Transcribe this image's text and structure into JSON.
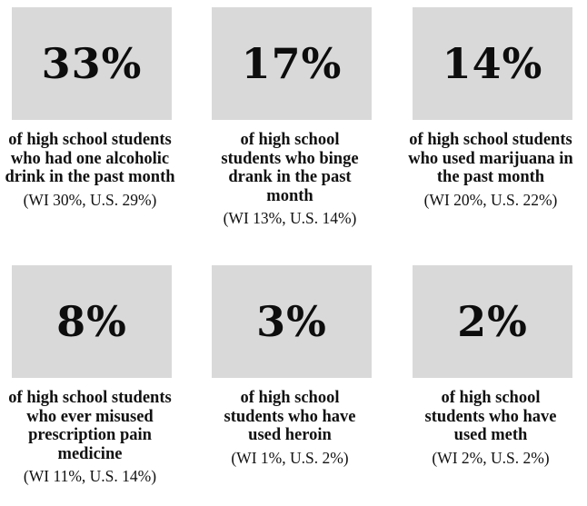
{
  "cards": [
    {
      "percent": "33%",
      "description": "of high school students who had one alcoholic drink in the past month",
      "comparison": "(WI 30%, U.S. 29%)"
    },
    {
      "percent": "17%",
      "description": "of high school students who binge drank in the past month",
      "comparison": "(WI 13%, U.S. 14%)"
    },
    {
      "percent": "14%",
      "description": "of high school students who used marijuana in the past month",
      "comparison": "(WI 20%, U.S. 22%)"
    },
    {
      "percent": "8%",
      "description": "of high school students who ever misused prescription pain medicine",
      "comparison": "(WI 11%, U.S. 14%)"
    },
    {
      "percent": "3%",
      "description": "of high school students who have used heroin",
      "comparison": "(WI 1%, U.S. 2%)"
    },
    {
      "percent": "2%",
      "description": "of high school students who have used meth",
      "comparison": "(WI 2%, U.S. 2%)"
    }
  ],
  "colors": {
    "box_background": "#d9d9d9",
    "text": "#111111"
  }
}
